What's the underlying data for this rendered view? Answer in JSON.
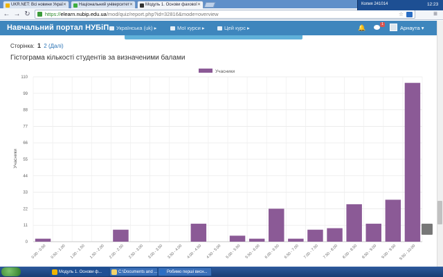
{
  "browser": {
    "tabs": [
      {
        "title": "UKR.NET: Всі новини Украї",
        "fav_color": "#f0b400"
      },
      {
        "title": "Національний університет",
        "fav_color": "#3fae3f"
      },
      {
        "title": "Модуль 1. Основи фахової",
        "fav_color": "#333333"
      }
    ],
    "url": {
      "scheme": "https://",
      "host": "elearn.nubip.edu.ua",
      "path": "/mod/quiz/report.php?id=32816&mode=overview"
    }
  },
  "navbar": {
    "brand": "Навчальний портал НУБіП",
    "language": "Українська (uk)",
    "my_courses": "Мої курси",
    "this_course": "Цей курс",
    "message_count": "1",
    "user": "Арнаута"
  },
  "pager": {
    "label": "Сторінка:",
    "current": "1",
    "next_page": "2",
    "next_label": "(Далі)"
  },
  "heading": "Гістограма кількості студентів за визначеними балами",
  "chart_data": {
    "type": "bar",
    "title": "",
    "legend": "Учасники",
    "legend_position": "top",
    "ylabel": "Учасники",
    "xlabel": "",
    "ylim": [
      0,
      110
    ],
    "yticks": [
      0,
      11,
      22,
      33,
      44,
      55,
      66,
      77,
      88,
      99,
      110
    ],
    "grid": true,
    "color": "#8b5a96",
    "categories": [
      "0.00 - 0.50",
      "0.50 - 1.00",
      "1.00 - 1.50",
      "1.50 - 2.00",
      "2.00 - 2.50",
      "2.50 - 3.00",
      "3.00 - 3.50",
      "3.50 - 4.00",
      "4.00 - 4.50",
      "4.50 - 5.00",
      "5.00 - 5.50",
      "5.50 - 6.00",
      "6.00 - 6.50",
      "6.50 - 7.00",
      "7.00 - 7.50",
      "7.50 - 8.00",
      "8.00 - 8.50",
      "8.50 - 9.00",
      "9.00 - 9.50",
      "9.50 - 10.00"
    ],
    "values": [
      2,
      0,
      0,
      0,
      8,
      0,
      0,
      0,
      12,
      0,
      4,
      2,
      22,
      2,
      8,
      9,
      25,
      12,
      28,
      106
    ]
  },
  "taskbar": {
    "items": [
      {
        "label": "Модуль 1. Основи ф...",
        "color": "#f0b400"
      },
      {
        "label": "C:\\Documents and ...",
        "color": "#f3d36b"
      },
      {
        "label": "Робимо перші висн...",
        "color": "#2b6ec4"
      }
    ],
    "tray_text": "Копия 241014",
    "clock": "12:23"
  }
}
